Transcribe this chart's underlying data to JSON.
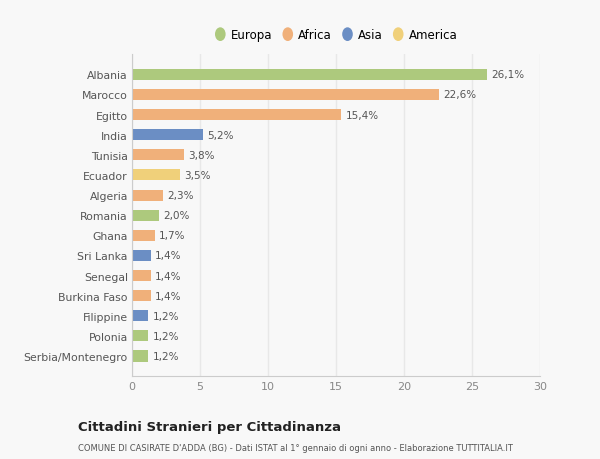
{
  "countries": [
    "Albania",
    "Marocco",
    "Egitto",
    "India",
    "Tunisia",
    "Ecuador",
    "Algeria",
    "Romania",
    "Ghana",
    "Sri Lanka",
    "Senegal",
    "Burkina Faso",
    "Filippine",
    "Polonia",
    "Serbia/Montenegro"
  ],
  "values": [
    26.1,
    22.6,
    15.4,
    5.2,
    3.8,
    3.5,
    2.3,
    2.0,
    1.7,
    1.4,
    1.4,
    1.4,
    1.2,
    1.2,
    1.2
  ],
  "continents": [
    "Europa",
    "Africa",
    "Africa",
    "Asia",
    "Africa",
    "America",
    "Africa",
    "Europa",
    "Africa",
    "Asia",
    "Africa",
    "Africa",
    "Asia",
    "Europa",
    "Europa"
  ],
  "colors": {
    "Europa": "#adc97d",
    "Africa": "#f0b07a",
    "Asia": "#6b8ec4",
    "America": "#f0d07a"
  },
  "legend_order": [
    "Europa",
    "Africa",
    "Asia",
    "America"
  ],
  "title": "Cittadini Stranieri per Cittadinanza",
  "subtitle": "COMUNE DI CASIRATE D'ADDA (BG) - Dati ISTAT al 1° gennaio di ogni anno - Elaborazione TUTTITALIA.IT",
  "xlim": [
    0,
    30
  ],
  "xticks": [
    0,
    5,
    10,
    15,
    20,
    25,
    30
  ],
  "background_color": "#f8f8f8",
  "grid_color": "#e8e8e8"
}
